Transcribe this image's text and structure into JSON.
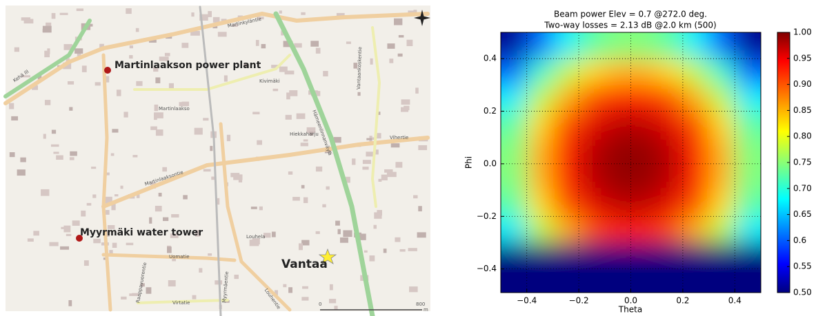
{
  "map": {
    "places": [
      "Martinlaakson power plant",
      "Myyrmäki water tower",
      "Vantaa"
    ],
    "streets": [
      "Martinlaaksontie",
      "Martinkyläntie",
      "Uomatie",
      "Virtatie",
      "Louhela",
      "Martinlaakso",
      "Vantaankoskentie",
      "Hämeenlinnanväylä",
      "Kehä III",
      "Raappavuorentie",
      "Myyrmäentie",
      "Louhentie",
      "Kivimäki",
      "Vihertie",
      "Hiekkaharju"
    ],
    "scale": [
      "0",
      "800",
      "m"
    ]
  },
  "chart_data": {
    "type": "heatmap",
    "title": "Beam power  Elev = 0.7 @272.0 deg.",
    "subtitle": "Two-way losses = 2.13 dB @2.0 km (500)",
    "x_label": "Theta",
    "y_label": "Phi",
    "x": [
      -0.45,
      -0.35,
      -0.25,
      -0.15,
      -0.05,
      0.05,
      0.15,
      0.25,
      0.35,
      0.45
    ],
    "y": [
      0.45,
      0.35,
      0.25,
      0.15,
      0.05,
      -0.05,
      -0.15,
      -0.25,
      -0.35,
      -0.45
    ],
    "z": [
      [
        0.51,
        0.61,
        0.68,
        0.73,
        0.75,
        0.75,
        0.73,
        0.68,
        0.61,
        0.51
      ],
      [
        0.61,
        0.71,
        0.78,
        0.83,
        0.85,
        0.85,
        0.83,
        0.78,
        0.71,
        0.61
      ],
      [
        0.68,
        0.78,
        0.85,
        0.9,
        0.92,
        0.92,
        0.9,
        0.85,
        0.78,
        0.68
      ],
      [
        0.73,
        0.83,
        0.9,
        0.95,
        0.97,
        0.97,
        0.95,
        0.9,
        0.83,
        0.73
      ],
      [
        0.75,
        0.85,
        0.92,
        0.97,
        0.99,
        0.99,
        0.97,
        0.92,
        0.85,
        0.75
      ],
      [
        0.75,
        0.85,
        0.92,
        0.97,
        0.99,
        0.99,
        0.97,
        0.92,
        0.85,
        0.75
      ],
      [
        0.73,
        0.83,
        0.9,
        0.95,
        0.97,
        0.97,
        0.95,
        0.9,
        0.83,
        0.73
      ],
      [
        0.68,
        0.78,
        0.85,
        0.9,
        0.92,
        0.92,
        0.9,
        0.85,
        0.78,
        0.68
      ],
      [
        0.5,
        0.5,
        0.5,
        0.5,
        0.5,
        0.5,
        0.5,
        0.5,
        0.5,
        0.5
      ],
      [
        0.5,
        0.5,
        0.5,
        0.5,
        0.5,
        0.5,
        0.5,
        0.5,
        0.5,
        0.5
      ]
    ],
    "xlim": [
      -0.5,
      0.5
    ],
    "ylim": [
      -0.49,
      0.5
    ],
    "xticks": [
      {
        "value": -0.4,
        "label": "−0.4"
      },
      {
        "value": -0.2,
        "label": "−0.2"
      },
      {
        "value": 0,
        "label": "0.0"
      },
      {
        "value": 0.2,
        "label": "0.2"
      },
      {
        "value": 0.4,
        "label": "0.4"
      }
    ],
    "yticks": [
      {
        "value": -0.4,
        "label": "−0.4"
      },
      {
        "value": -0.2,
        "label": "−0.2"
      },
      {
        "value": 0,
        "label": "0.0"
      },
      {
        "value": 0.2,
        "label": "0.2"
      },
      {
        "value": 0.4,
        "label": "0.4"
      }
    ],
    "colorbar_lim": [
      0.5,
      1
    ],
    "colorbar_ticks": [
      {
        "value": 0.5,
        "label": "0.50"
      },
      0.55,
      0.6,
      {
        "value": 0.65,
        "label": "0.65"
      },
      {
        "value": 0.7,
        "label": "0.70"
      },
      0.75,
      {
        "value": 0.8,
        "label": "0.80"
      },
      0.85,
      {
        "value": 0.9,
        "label": "0.90"
      },
      0.95,
      {
        "value": 1,
        "label": "1.00"
      }
    ],
    "colormap": "jet",
    "grid": true
  }
}
